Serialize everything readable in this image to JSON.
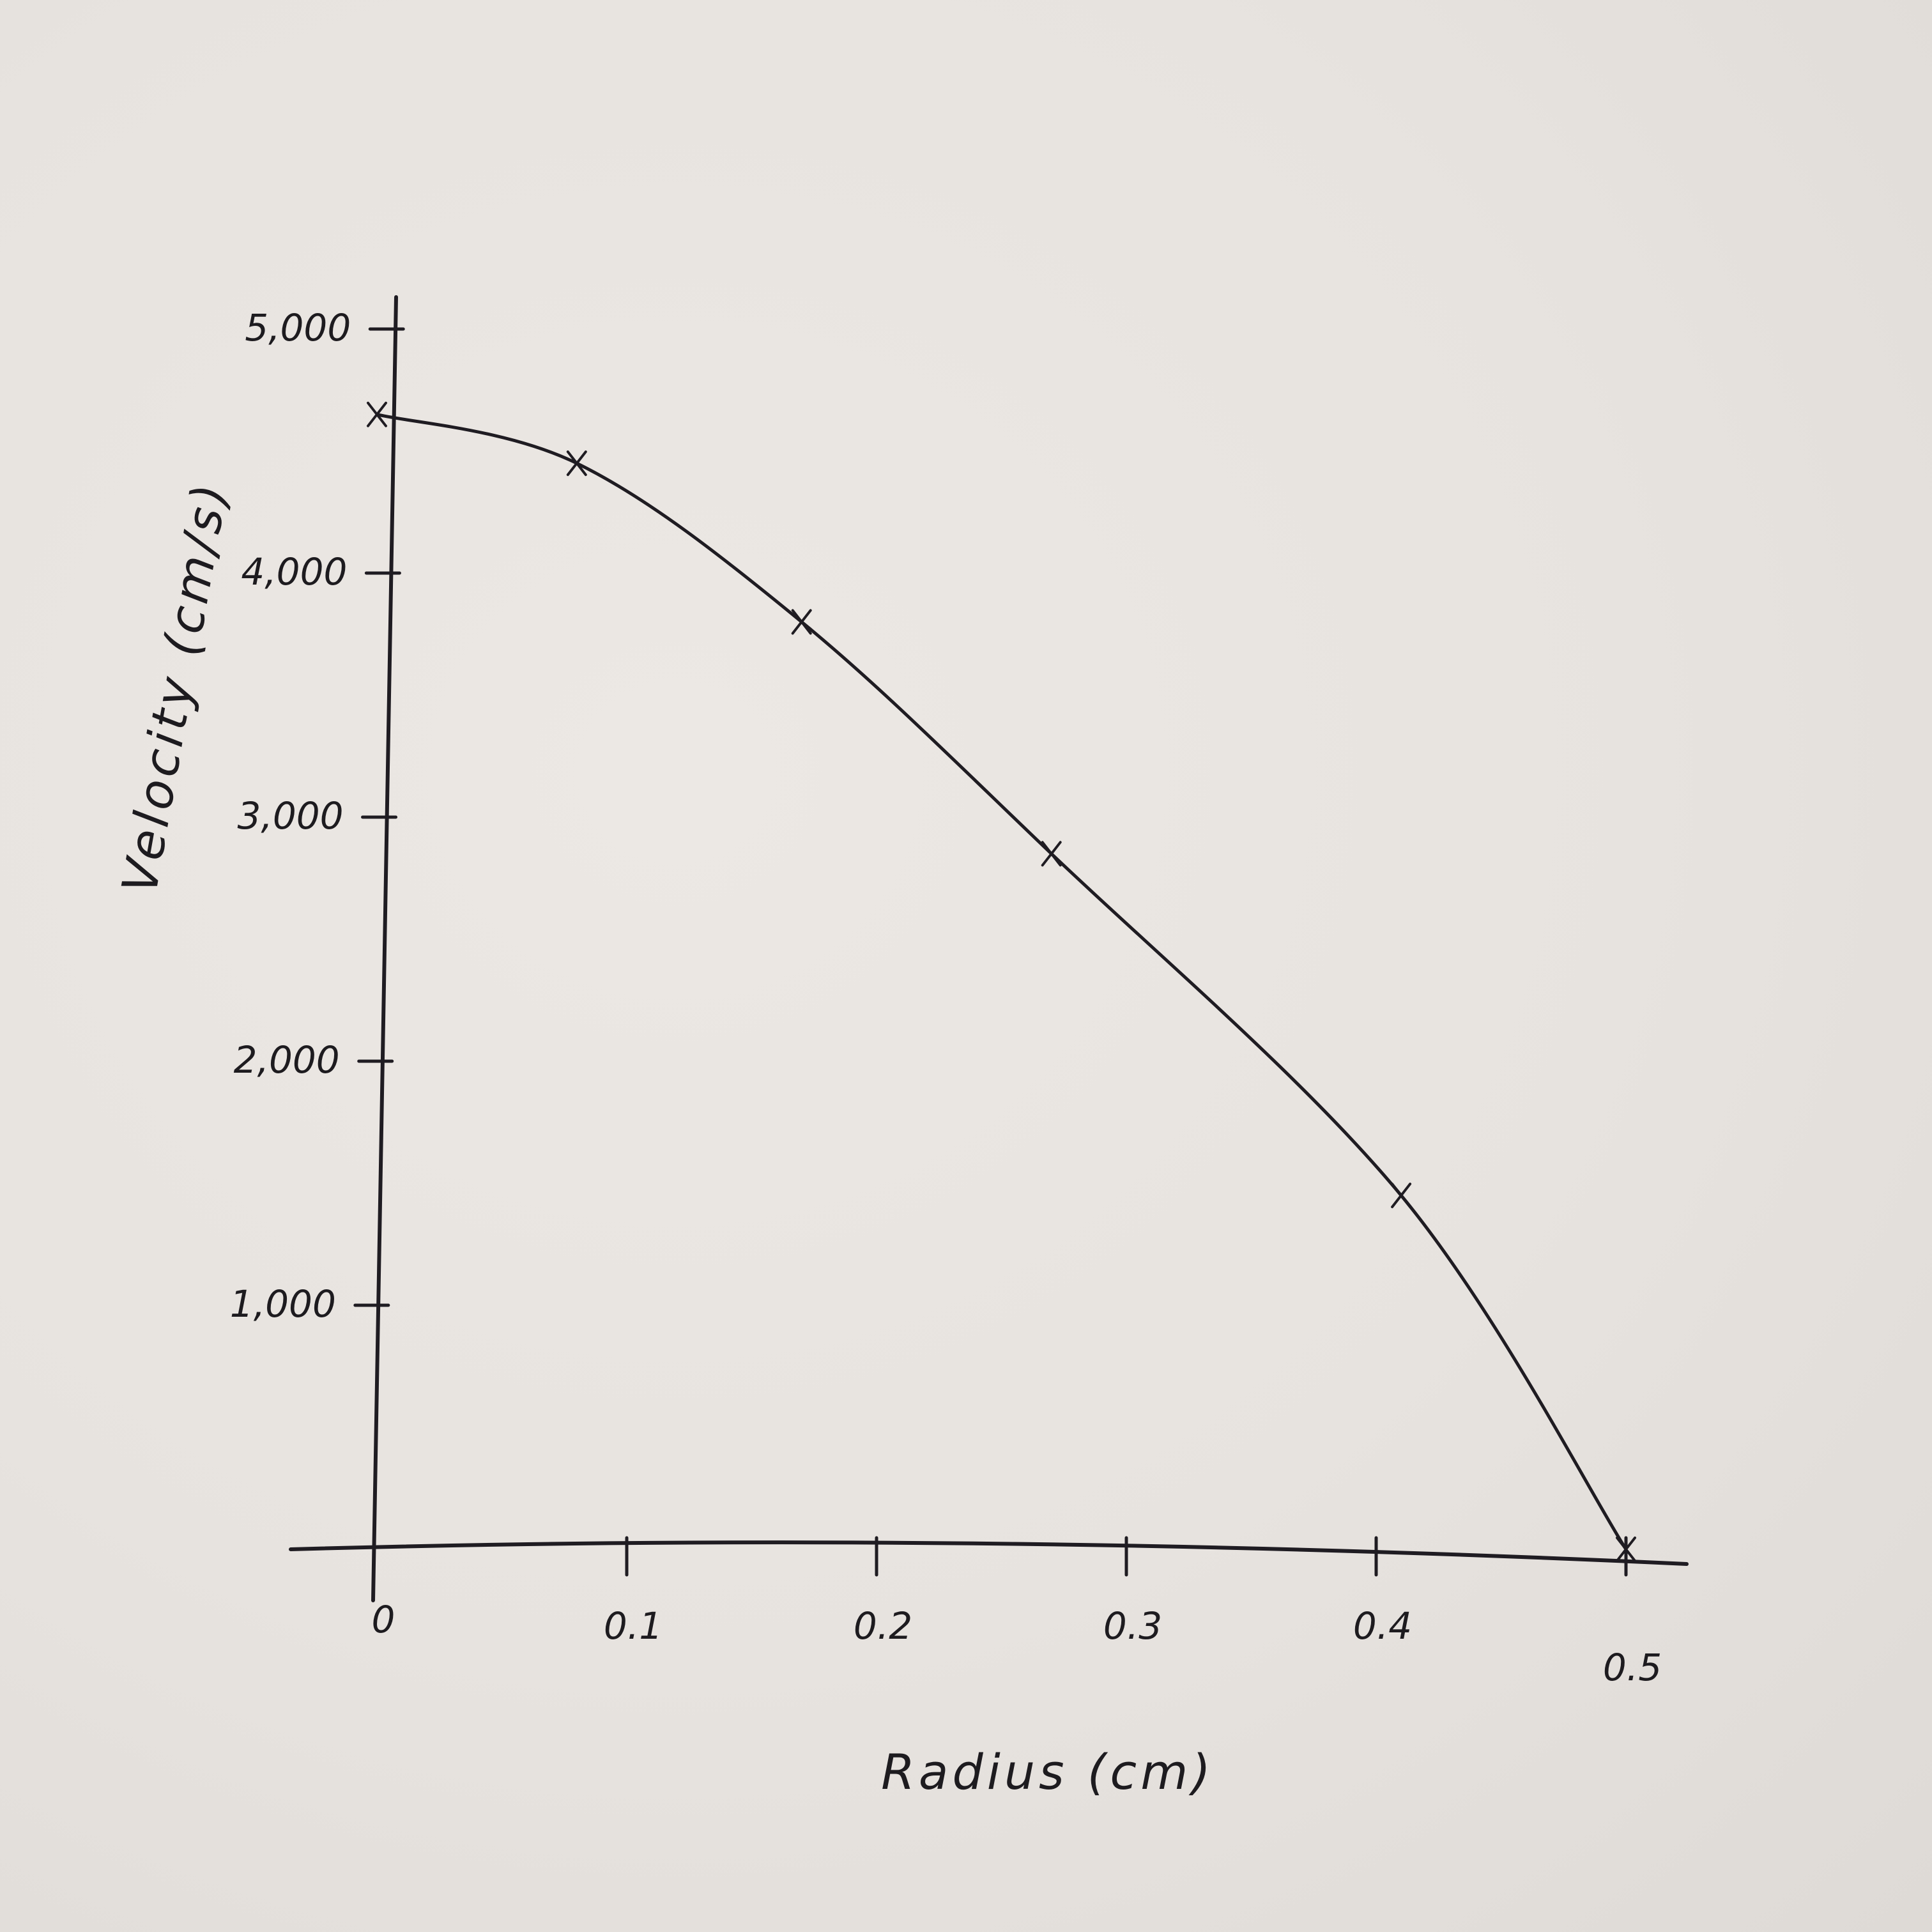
{
  "chart_data": {
    "type": "line",
    "title": "",
    "xlabel": "Radius (cm)",
    "ylabel": "Velocity (cm/s)",
    "xlim": [
      0,
      0.5
    ],
    "ylim": [
      0,
      5000
    ],
    "x_ticks": [
      {
        "value": 0,
        "label": "0"
      },
      {
        "value": 0.1,
        "label": "0.1"
      },
      {
        "value": 0.2,
        "label": "0.2"
      },
      {
        "value": 0.3,
        "label": "0.3"
      },
      {
        "value": 0.4,
        "label": "0.4"
      },
      {
        "value": 0.5,
        "label": "0.5"
      }
    ],
    "y_ticks": [
      {
        "value": 1000,
        "label": "1,000"
      },
      {
        "value": 2000,
        "label": "2,000"
      },
      {
        "value": 3000,
        "label": "3,000"
      },
      {
        "value": 4000,
        "label": "4,000"
      },
      {
        "value": 5000,
        "label": "5,000"
      }
    ],
    "grid": false,
    "series": [
      {
        "points": [
          {
            "x": 0,
            "y": 4650
          },
          {
            "x": 0.08,
            "y": 4450
          },
          {
            "x": 0.17,
            "y": 3800
          },
          {
            "x": 0.27,
            "y": 2850
          },
          {
            "x": 0.41,
            "y": 1450
          },
          {
            "x": 0.5,
            "y": 0
          }
        ]
      }
    ]
  }
}
